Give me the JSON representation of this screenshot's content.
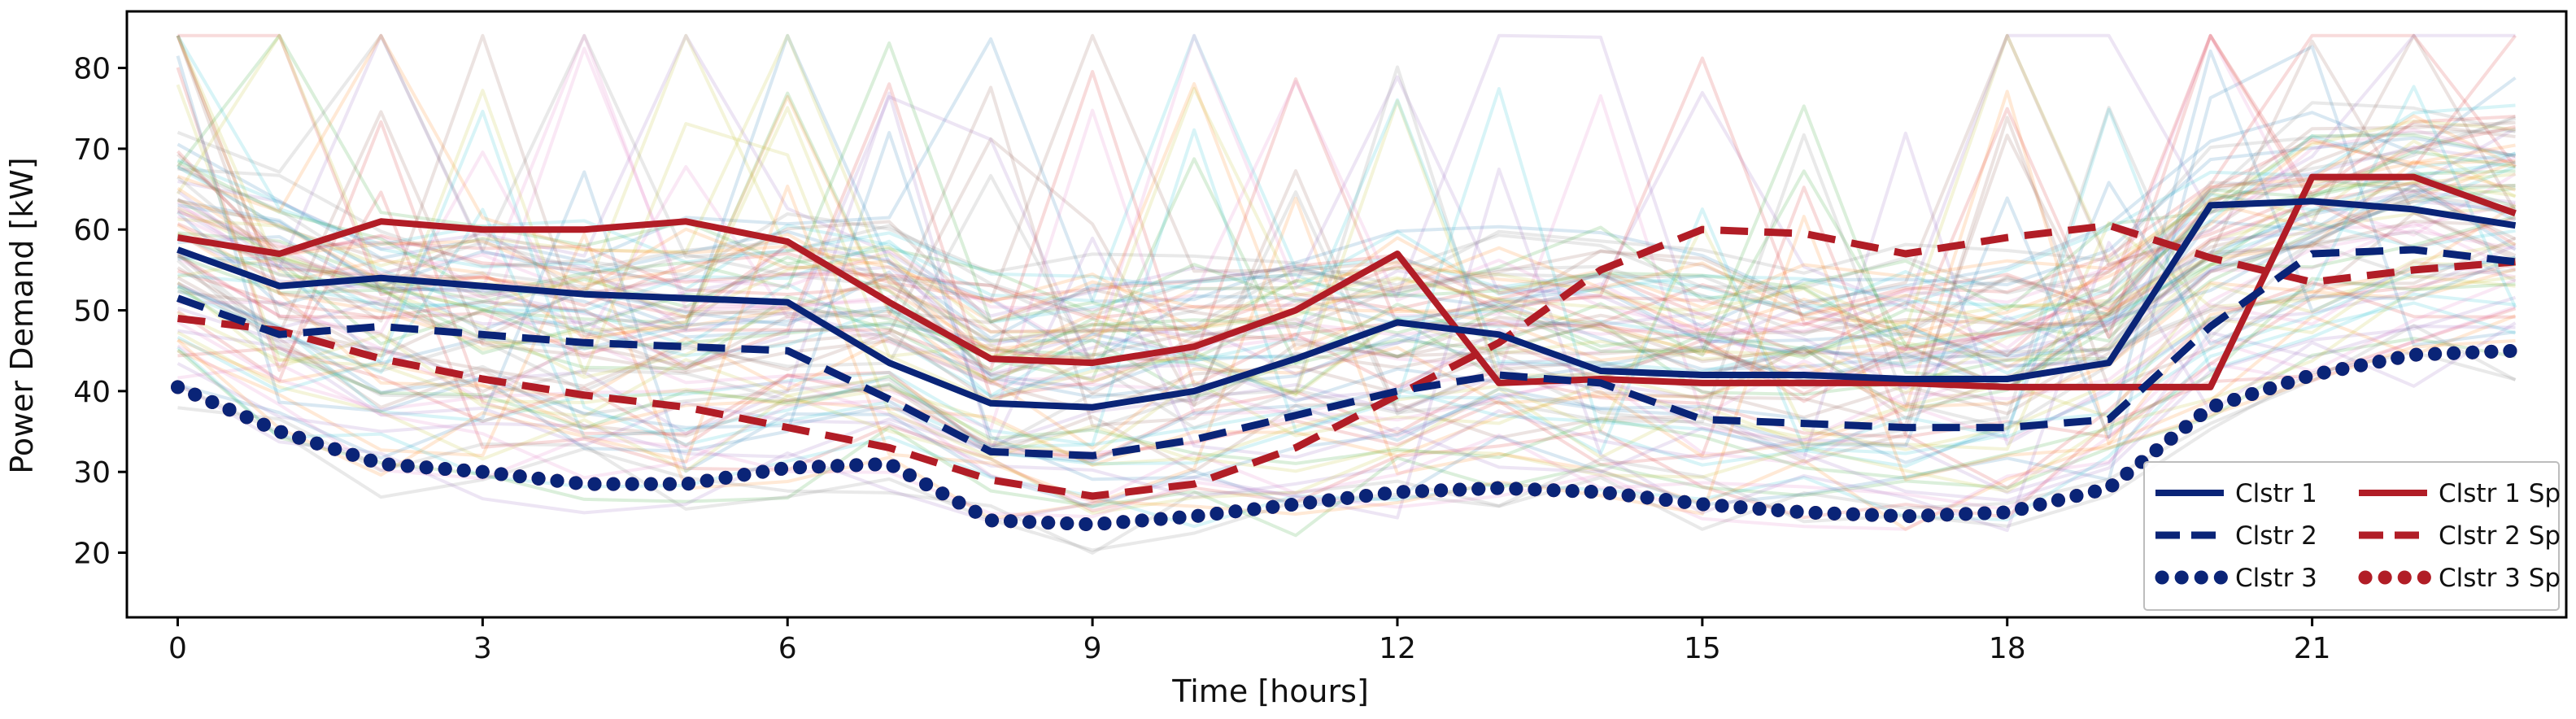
{
  "chart_data": {
    "type": "line",
    "title": "",
    "xlabel": "Time [hours]",
    "ylabel": "Power Demand [kW]",
    "xlim": [
      -0.5,
      23.5
    ],
    "ylim": [
      12,
      87
    ],
    "xticks": [
      0,
      3,
      6,
      9,
      12,
      15,
      18,
      21
    ],
    "yticks": [
      20,
      30,
      40,
      50,
      60,
      70,
      80
    ],
    "grid": false,
    "legend_position": "bottom-right",
    "background_profiles": {
      "description": "many faint multicolored individual daily load profiles",
      "count": 90,
      "range_kw": [
        18,
        84
      ]
    },
    "colors": {
      "blue": "#0a2477",
      "red": "#b11d26"
    },
    "x": [
      0,
      1,
      2,
      3,
      4,
      5,
      6,
      7,
      8,
      9,
      10,
      11,
      12,
      13,
      14,
      15,
      16,
      17,
      18,
      19,
      20,
      21,
      22,
      23
    ],
    "series": [
      {
        "name": "Clstr 1",
        "color": "blue",
        "style": "solid",
        "values": [
          57.5,
          53,
          54,
          53,
          52,
          51.5,
          51,
          43.5,
          38.5,
          38,
          40,
          44,
          48.5,
          47,
          42.5,
          42,
          42,
          41.5,
          41.5,
          43.5,
          63,
          63.5,
          62.5,
          60.5
        ]
      },
      {
        "name": "Clstr 2",
        "color": "blue",
        "style": "dashed",
        "values": [
          51.5,
          47,
          48,
          47,
          46,
          45.5,
          45,
          39,
          32.5,
          32,
          34,
          37,
          40,
          42,
          41,
          36.5,
          36,
          35.5,
          35.5,
          36.5,
          48,
          57,
          57.5,
          56
        ]
      },
      {
        "name": "Clstr 3",
        "color": "blue",
        "style": "dotted",
        "values": [
          40.5,
          35,
          31,
          30,
          28.5,
          28.5,
          30.5,
          31,
          24,
          23.5,
          24.5,
          26,
          27.5,
          28,
          27.5,
          26,
          25,
          24.5,
          25,
          28,
          38,
          42,
          44.5,
          45
        ]
      },
      {
        "name": "Clstr 1 Sp",
        "color": "red",
        "style": "solid",
        "values": [
          59,
          57,
          61,
          60,
          60,
          61,
          58.5,
          51,
          44,
          43.5,
          45.5,
          50,
          57,
          41,
          41.5,
          41,
          41,
          41,
          40.5,
          40.5,
          40.5,
          66.5,
          66.5,
          62
        ]
      },
      {
        "name": "Clstr 2 Sp",
        "color": "red",
        "style": "dashed",
        "values": [
          49,
          47.5,
          44,
          41.5,
          39.5,
          38,
          35.5,
          33,
          29,
          27,
          28.5,
          33,
          39.5,
          46,
          55,
          60,
          59.5,
          57,
          59,
          60.5,
          56.5,
          53.5,
          55,
          56
        ]
      },
      {
        "name": "Clstr 3 Sp",
        "color": "red",
        "style": "dotted",
        "values": [
          40.5,
          35,
          31,
          30,
          28.5,
          28.5,
          30.5,
          31,
          24,
          23.5,
          24.5,
          26,
          27.5,
          28,
          27.5,
          26,
          25,
          24.5,
          25,
          28,
          38,
          42,
          44.5,
          45
        ]
      }
    ],
    "legend": [
      [
        "Clstr 1",
        "Clstr 1 Sp"
      ],
      [
        "Clstr 2",
        "Clstr 2 Sp"
      ],
      [
        "Clstr 3",
        "Clstr 3 Sp"
      ]
    ]
  }
}
